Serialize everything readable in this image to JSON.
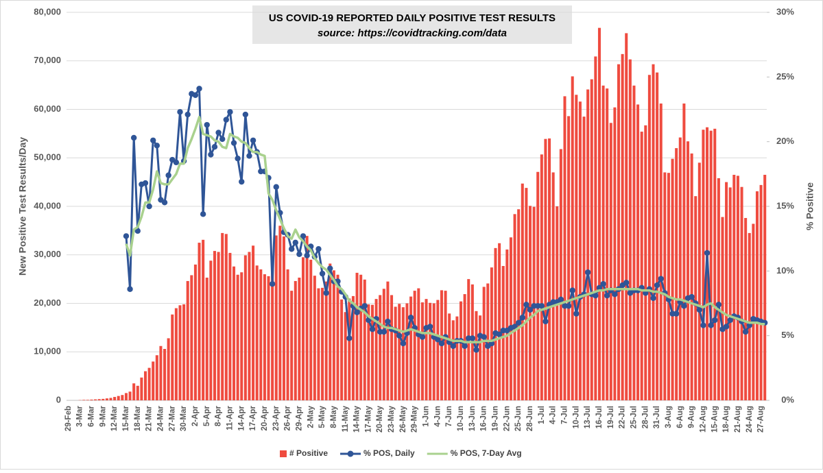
{
  "chart_data": {
    "type": "bar-line",
    "title": "US COVID-19 REPORTED DAILY POSITIVE TEST RESULTS",
    "subtitle": "source: https://covidtracking.com/data",
    "y_label": "New Positive Test Results/Day",
    "y2_label": "% Positive",
    "categories": [
      "29-Feb",
      null,
      null,
      "3-Mar",
      null,
      null,
      "6-Mar",
      null,
      null,
      "9-Mar",
      null,
      null,
      "12-Mar",
      null,
      null,
      "15-Mar",
      null,
      null,
      "18-Mar",
      null,
      null,
      "21-Mar",
      null,
      null,
      "24-Mar",
      null,
      null,
      "27-Mar",
      null,
      null,
      "30-Mar",
      null,
      null,
      "2-Apr",
      null,
      null,
      "5-Apr",
      null,
      null,
      "8-Apr",
      null,
      null,
      "11-Apr",
      null,
      null,
      "14-Apr",
      null,
      null,
      "17-Apr",
      null,
      null,
      "20-Apr",
      null,
      null,
      "23-Apr",
      null,
      null,
      "26-Apr",
      null,
      null,
      "29-Apr",
      null,
      null,
      "2-May",
      null,
      null,
      "5-May",
      null,
      null,
      "8-May",
      null,
      null,
      "11-May",
      null,
      null,
      "14-May",
      null,
      null,
      "17-May",
      null,
      null,
      "20-May",
      null,
      null,
      "23-May",
      null,
      null,
      "26-May",
      null,
      null,
      "29-May",
      null,
      null,
      "1-Jun",
      null,
      null,
      "4-Jun",
      null,
      null,
      "7-Jun",
      null,
      null,
      "10-Jun",
      null,
      null,
      "13-Jun",
      null,
      null,
      "16-Jun",
      null,
      null,
      "19-Jun",
      null,
      null,
      "22-Jun",
      null,
      null,
      "25-Jun",
      null,
      null,
      "28-Jun",
      null,
      null,
      "1-Jul",
      null,
      null,
      "4-Jul",
      null,
      null,
      "7-Jul",
      null,
      null,
      "10-Jul",
      null,
      null,
      "13-Jul",
      null,
      null,
      "16-Jul",
      null,
      null,
      "19-Jul",
      null,
      null,
      "22-Jul",
      null,
      null,
      "25-Jul",
      null,
      null,
      "28-Jul",
      null,
      null,
      "31-Jul",
      null,
      null,
      "3-Aug",
      null,
      null,
      "6-Aug",
      null,
      null,
      "9-Aug",
      null,
      null,
      "12-Aug",
      null,
      null,
      "15-Aug",
      null,
      null,
      "18-Aug",
      null,
      null,
      "21-Aug",
      null,
      null,
      "24-Aug",
      null,
      null,
      "27-Aug",
      null
    ],
    "series": [
      {
        "name": "# Positive",
        "type": "bar",
        "axis": "y",
        "color": "#ef4b3f",
        "values": [
          0,
          0,
          0,
          50,
          100,
          100,
          150,
          200,
          250,
          300,
          400,
          500,
          700,
          900,
          1100,
          1500,
          1800,
          3500,
          3000,
          4700,
          6000,
          6700,
          8000,
          9300,
          11200,
          10600,
          12800,
          17700,
          19000,
          19600,
          19800,
          24600,
          25800,
          28000,
          32500,
          33100,
          25300,
          28800,
          30800,
          30600,
          34500,
          34300,
          30400,
          27600,
          25900,
          26400,
          29900,
          30600,
          31900,
          27800,
          27000,
          26000,
          25600,
          28300,
          34000,
          36000,
          33800,
          27000,
          22600,
          24600,
          25300,
          29500,
          33900,
          29000,
          25700,
          23100,
          23200,
          24500,
          28200,
          26800,
          25900,
          20800,
          18200,
          21000,
          21500,
          26300,
          25900,
          24900,
          19800,
          19700,
          20900,
          21700,
          23000,
          24500,
          21700,
          19300,
          19900,
          19200,
          20000,
          21400,
          22600,
          23100,
          20200,
          20900,
          20100,
          20000,
          20700,
          22700,
          22600,
          17900,
          16500,
          17300,
          20400,
          21900,
          25000,
          23900,
          18400,
          17500,
          23400,
          24100,
          27400,
          31400,
          32400,
          27700,
          31100,
          33600,
          38400,
          39400,
          44700,
          43800,
          40100,
          39900,
          47100,
          50700,
          53900,
          54000,
          47000,
          40000,
          51800,
          62700,
          58600,
          66800,
          63000,
          61600,
          58500,
          64100,
          66200,
          70900,
          76800,
          64900,
          64300,
          57200,
          60400,
          69300,
          71400,
          75700,
          70300,
          64900,
          61000,
          55400,
          56700,
          67100,
          69300,
          67600,
          61200,
          47000,
          46900,
          49800,
          52000,
          54200,
          61200,
          53400,
          50900,
          42100,
          49000,
          55800,
          56300,
          55600,
          56000,
          45800,
          37800,
          45000,
          43900,
          46500,
          46300,
          44000,
          37600,
          34500,
          36400,
          43100,
          44400,
          46500
        ]
      },
      {
        "name": "% POS, Daily",
        "type": "line",
        "axis": "y2",
        "color": "#2f5597",
        "markers": true,
        "values": [
          null,
          null,
          null,
          null,
          null,
          null,
          null,
          null,
          null,
          null,
          null,
          null,
          null,
          null,
          null,
          12.7,
          8.6,
          20.3,
          13.1,
          16.7,
          16.8,
          15.0,
          20.1,
          19.7,
          15.5,
          15.3,
          17.4,
          18.6,
          18.4,
          22.3,
          18.5,
          22.1,
          23.7,
          23.6,
          24.1,
          14.4,
          21.3,
          19.0,
          19.6,
          20.7,
          20.2,
          21.7,
          22.3,
          19.9,
          18.7,
          16.9,
          22.1,
          18.9,
          20.1,
          19.2,
          17.7,
          17.7,
          17.2,
          9.0,
          16.5,
          14.5,
          13.0,
          12.8,
          11.7,
          12.2,
          11.3,
          12.7,
          11.2,
          11.9,
          11.1,
          11.7,
          9.8,
          8.3,
          10.2,
          9.2,
          9.2,
          8.4,
          8.0,
          4.8,
          7.3,
          6.8,
          7.1,
          7.3,
          6.2,
          5.5,
          6.3,
          5.3,
          5.3,
          6.1,
          5.5,
          5.4,
          5.0,
          4.4,
          5.2,
          6.4,
          5.6,
          5.1,
          4.9,
          5.6,
          5.7,
          4.9,
          4.7,
          4.4,
          4.9,
          4.5,
          4.2,
          4.6,
          4.6,
          4.2,
          4.8,
          4.8,
          3.9,
          5.0,
          4.9,
          4.2,
          4.4,
          5.2,
          5.1,
          5.4,
          5.4,
          5.6,
          5.7,
          6.0,
          6.4,
          7.4,
          7.0,
          7.3,
          7.3,
          7.3,
          6.1,
          7.4,
          7.6,
          7.6,
          7.8,
          7.3,
          7.3,
          8.5,
          6.7,
          8.0,
          8.2,
          9.9,
          8.2,
          8.1,
          8.7,
          9.0,
          8.1,
          8.5,
          8.2,
          8.6,
          8.9,
          9.1,
          8.3,
          8.5,
          8.5,
          8.7,
          8.3,
          8.6,
          7.9,
          8.9,
          9.4,
          8.3,
          7.8,
          6.7,
          6.7,
          7.6,
          7.3,
          7.9,
          8.0,
          7.5,
          7.0,
          5.8,
          11.4,
          5.8,
          6.2,
          7.4,
          5.5,
          5.7,
          6.2,
          6.5,
          6.4,
          6.1,
          5.3,
          5.8,
          6.3,
          6.2,
          6.1,
          6.0
        ]
      },
      {
        "name": "% POS, 7-Day Avg",
        "type": "line",
        "axis": "y2",
        "color": "#a9d18e",
        "markers": false,
        "values": [
          null,
          null,
          null,
          null,
          null,
          null,
          null,
          null,
          null,
          null,
          null,
          null,
          null,
          null,
          null,
          12.1,
          11.2,
          13.2,
          13.4,
          14.2,
          15.3,
          15.3,
          16.3,
          17.7,
          16.8,
          16.7,
          16.7,
          17.1,
          17.5,
          18.3,
          18.3,
          19.5,
          20.2,
          21.0,
          21.9,
          20.6,
          20.5,
          20.4,
          20.1,
          20.0,
          19.6,
          19.5,
          20.6,
          20.4,
          20.3,
          20.0,
          19.9,
          19.5,
          19.2,
          19.2,
          19.0,
          18.9,
          16.0,
          15.5,
          14.7,
          14.0,
          13.3,
          12.7,
          12.5,
          13.2,
          12.6,
          12.3,
          11.9,
          11.6,
          11.0,
          10.6,
          10.3,
          10.1,
          9.7,
          9.3,
          8.8,
          8.6,
          8.2,
          7.7,
          7.5,
          7.2,
          7.0,
          6.8,
          6.5,
          6.3,
          6.1,
          5.9,
          5.7,
          5.6,
          5.6,
          5.5,
          5.4,
          5.3,
          5.4,
          5.5,
          5.4,
          5.3,
          5.2,
          5.2,
          5.2,
          5.1,
          5.0,
          4.9,
          4.8,
          4.7,
          4.6,
          4.6,
          4.6,
          4.5,
          4.5,
          4.5,
          4.5,
          4.5,
          4.6,
          4.6,
          4.6,
          4.7,
          4.8,
          4.9,
          5.0,
          5.2,
          5.4,
          5.6,
          5.8,
          6.1,
          6.4,
          6.6,
          6.9,
          7.0,
          7.1,
          7.2,
          7.3,
          7.4,
          7.5,
          7.6,
          7.7,
          7.8,
          7.9,
          8.0,
          8.1,
          8.2,
          8.3,
          8.4,
          8.5,
          8.5,
          8.6,
          8.6,
          8.6,
          8.6,
          8.6,
          8.6,
          8.6,
          8.6,
          8.6,
          8.5,
          8.5,
          8.5,
          8.4,
          8.4,
          8.3,
          8.2,
          8.0,
          7.9,
          7.8,
          7.8,
          7.7,
          7.6,
          7.5,
          7.4,
          7.3,
          7.2,
          7.4,
          7.5,
          7.2,
          7.0,
          6.8,
          6.6,
          6.5,
          6.4,
          6.3,
          6.2,
          6.1,
          6.0,
          6.0,
          6.0,
          5.9,
          5.9
        ]
      }
    ],
    "ylim": [
      0,
      80000
    ],
    "yticks": [
      0,
      {
        "value": 10000,
        "label": "10,000"
      },
      {
        "value": 20000,
        "label": "20,000"
      },
      {
        "value": 30000,
        "label": "30,000"
      },
      {
        "value": 40000,
        "label": "40,000"
      },
      {
        "value": 50000,
        "label": "50,000"
      },
      {
        "value": 60000,
        "label": "60,000"
      },
      {
        "value": 70000,
        "label": "70,000"
      },
      {
        "value": 80000,
        "label": "80,000"
      }
    ],
    "y2lim": [
      0,
      30
    ],
    "y2ticks": [
      {
        "value": 0,
        "label": "0%"
      },
      {
        "value": 5,
        "label": "5%"
      },
      {
        "value": 10,
        "label": "10%"
      },
      {
        "value": 15,
        "label": "15%"
      },
      {
        "value": 20,
        "label": "20%"
      },
      {
        "value": 25,
        "label": "25%"
      },
      {
        "value": 30,
        "label": "30%"
      }
    ],
    "grid": true,
    "legend": "bottom"
  }
}
